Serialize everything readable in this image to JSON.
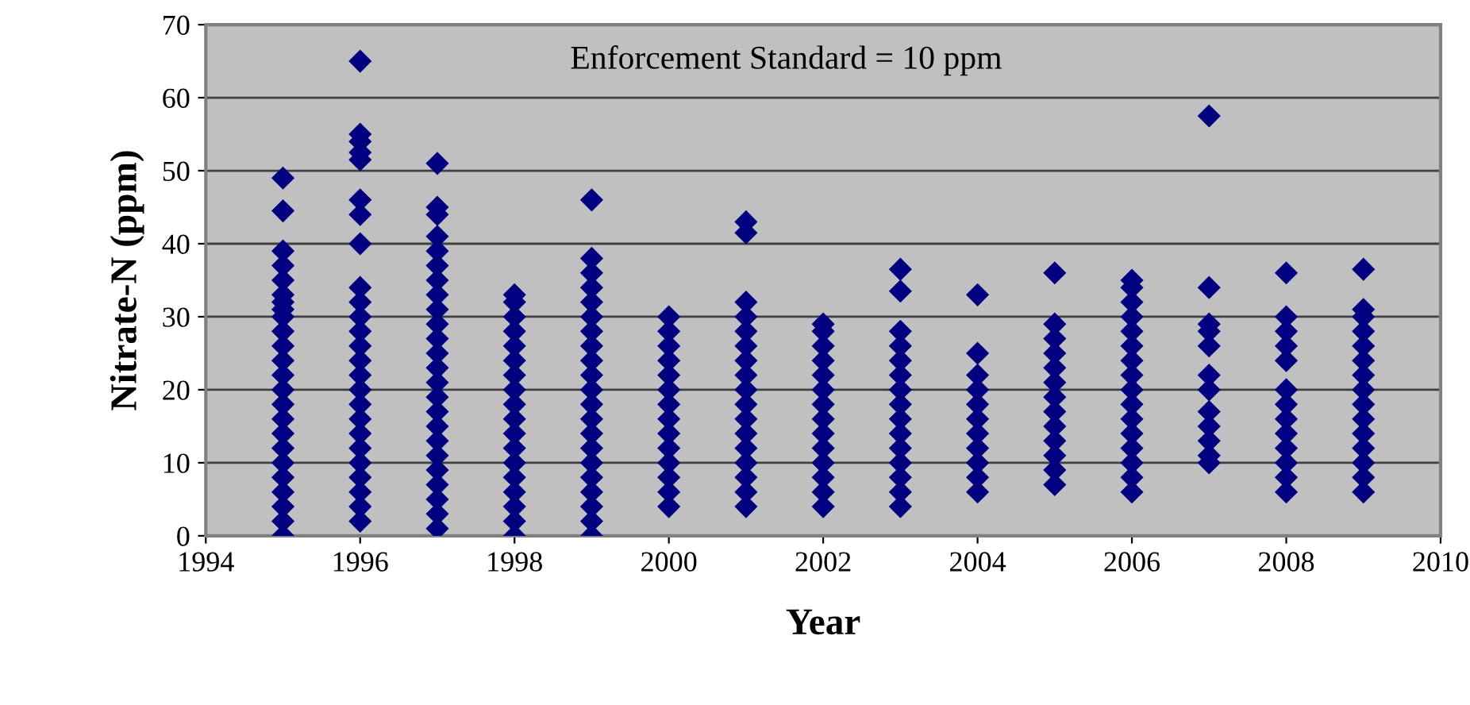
{
  "chart_data": {
    "type": "scatter",
    "xlabel": "Year",
    "ylabel": "Nitrate-N (ppm)",
    "annotations": [
      "Enforcement Standard = 10 ppm"
    ],
    "xlim": [
      1994,
      2010
    ],
    "xticks": [
      1994,
      1996,
      1998,
      2000,
      2002,
      2004,
      2006,
      2008,
      2010
    ],
    "ylim": [
      0,
      70
    ],
    "yticks": [
      0,
      10,
      20,
      30,
      40,
      50,
      60,
      70
    ],
    "grid": "y",
    "marker": "diamond",
    "series": [
      {
        "color": "#000080",
        "x": [
          1995,
          1995,
          1995,
          1995,
          1995,
          1995,
          1995,
          1995,
          1995,
          1995,
          1995,
          1995,
          1995,
          1995,
          1995,
          1995,
          1995,
          1995,
          1995,
          1995,
          1995,
          1995,
          1995,
          1995
        ],
        "values": [
          0,
          2,
          4,
          6,
          8,
          10,
          12,
          14,
          16,
          18,
          20,
          22,
          24,
          26,
          28,
          30,
          31,
          32,
          33,
          35,
          37,
          39,
          44.5,
          49
        ]
      },
      {
        "color": "#000080",
        "x": [
          1996,
          1996,
          1996,
          1996,
          1996,
          1996,
          1996,
          1996,
          1996,
          1996,
          1996,
          1996,
          1996,
          1996,
          1996,
          1996,
          1996,
          1996,
          1996,
          1996,
          1996,
          1996,
          1996,
          1996,
          1996
        ],
        "values": [
          2,
          4,
          6,
          8,
          10,
          12,
          14,
          16,
          18,
          20,
          22,
          24,
          26,
          28,
          30,
          32,
          34,
          40,
          44,
          46,
          51.5,
          52.5,
          54,
          55,
          65
        ]
      },
      {
        "color": "#000080",
        "x": [
          1997,
          1997,
          1997,
          1997,
          1997,
          1997,
          1997,
          1997,
          1997,
          1997,
          1997,
          1997,
          1997,
          1997,
          1997,
          1997,
          1997,
          1997,
          1997,
          1997,
          1997,
          1997,
          1997,
          1997
        ],
        "values": [
          1,
          3,
          5,
          7,
          9,
          11,
          13,
          15,
          17,
          19,
          21,
          23,
          25,
          27,
          29,
          31,
          33,
          35,
          37,
          39,
          41,
          44,
          45,
          51
        ]
      },
      {
        "color": "#000080",
        "x": [
          1998,
          1998,
          1998,
          1998,
          1998,
          1998,
          1998,
          1998,
          1998,
          1998,
          1998,
          1998,
          1998,
          1998,
          1998,
          1998,
          1998,
          1998
        ],
        "values": [
          0,
          2,
          4,
          6,
          8,
          10,
          12,
          14,
          16,
          18,
          20,
          22,
          24,
          26,
          28,
          30,
          32,
          33
        ]
      },
      {
        "color": "#000080",
        "x": [
          1999,
          1999,
          1999,
          1999,
          1999,
          1999,
          1999,
          1999,
          1999,
          1999,
          1999,
          1999,
          1999,
          1999,
          1999,
          1999,
          1999,
          1999,
          1999,
          1999,
          1999
        ],
        "values": [
          0,
          2,
          4,
          6,
          8,
          10,
          12,
          14,
          16,
          18,
          20,
          22,
          24,
          26,
          28,
          30,
          32,
          34,
          36,
          38,
          46
        ]
      },
      {
        "color": "#000080",
        "x": [
          2000,
          2000,
          2000,
          2000,
          2000,
          2000,
          2000,
          2000,
          2000,
          2000,
          2000,
          2000,
          2000,
          2000
        ],
        "values": [
          4,
          6,
          8,
          10,
          12,
          14,
          16,
          18,
          20,
          22,
          24,
          26,
          28,
          30
        ]
      },
      {
        "color": "#000080",
        "x": [
          2001,
          2001,
          2001,
          2001,
          2001,
          2001,
          2001,
          2001,
          2001,
          2001,
          2001,
          2001,
          2001,
          2001,
          2001,
          2001,
          2001
        ],
        "values": [
          4,
          6,
          8,
          10,
          12,
          14,
          16,
          18,
          20,
          22,
          24,
          26,
          28,
          30,
          32,
          41.5,
          43
        ]
      },
      {
        "color": "#000080",
        "x": [
          2002,
          2002,
          2002,
          2002,
          2002,
          2002,
          2002,
          2002,
          2002,
          2002,
          2002,
          2002,
          2002,
          2002
        ],
        "values": [
          4,
          6,
          8,
          10,
          12,
          14,
          16,
          18,
          20,
          22,
          24,
          26,
          28,
          29
        ]
      },
      {
        "color": "#000080",
        "x": [
          2003,
          2003,
          2003,
          2003,
          2003,
          2003,
          2003,
          2003,
          2003,
          2003,
          2003,
          2003,
          2003,
          2003,
          2003
        ],
        "values": [
          4,
          6,
          8,
          10,
          12,
          14,
          16,
          18,
          20,
          22,
          24,
          26,
          28,
          33.5,
          36.5
        ]
      },
      {
        "color": "#000080",
        "x": [
          2004,
          2004,
          2004,
          2004,
          2004,
          2004,
          2004,
          2004,
          2004,
          2004,
          2004
        ],
        "values": [
          6,
          8,
          10,
          12,
          14,
          16,
          18,
          20,
          22,
          25,
          33
        ]
      },
      {
        "color": "#000080",
        "x": [
          2005,
          2005,
          2005,
          2005,
          2005,
          2005,
          2005,
          2005,
          2005,
          2005,
          2005,
          2005,
          2005
        ],
        "values": [
          7,
          9,
          11,
          13,
          15,
          17,
          19,
          21,
          23,
          25,
          27,
          29,
          36
        ]
      },
      {
        "color": "#000080",
        "x": [
          2006,
          2006,
          2006,
          2006,
          2006,
          2006,
          2006,
          2006,
          2006,
          2006,
          2006,
          2006,
          2006,
          2006,
          2006,
          2006
        ],
        "values": [
          6,
          8,
          10,
          12,
          14,
          16,
          18,
          20,
          22,
          24,
          26,
          28,
          30,
          32,
          34,
          35
        ]
      },
      {
        "color": "#000080",
        "x": [
          2007,
          2007,
          2007,
          2007,
          2007,
          2007,
          2007,
          2007,
          2007,
          2007,
          2007,
          2007
        ],
        "values": [
          10,
          11,
          13,
          15,
          17,
          20,
          22,
          26,
          28,
          29,
          34,
          57.5
        ]
      },
      {
        "color": "#000080",
        "x": [
          2008,
          2008,
          2008,
          2008,
          2008,
          2008,
          2008,
          2008,
          2008,
          2008,
          2008,
          2008,
          2008
        ],
        "values": [
          6,
          8,
          10,
          12,
          14,
          16,
          18,
          20,
          24,
          26,
          28,
          30,
          36
        ]
      },
      {
        "color": "#000080",
        "x": [
          2009,
          2009,
          2009,
          2009,
          2009,
          2009,
          2009,
          2009,
          2009,
          2009,
          2009,
          2009,
          2009,
          2009,
          2009
        ],
        "values": [
          6,
          8,
          10,
          12,
          14,
          16,
          18,
          20,
          22,
          24,
          26,
          28,
          30,
          31,
          36.5
        ]
      }
    ]
  }
}
